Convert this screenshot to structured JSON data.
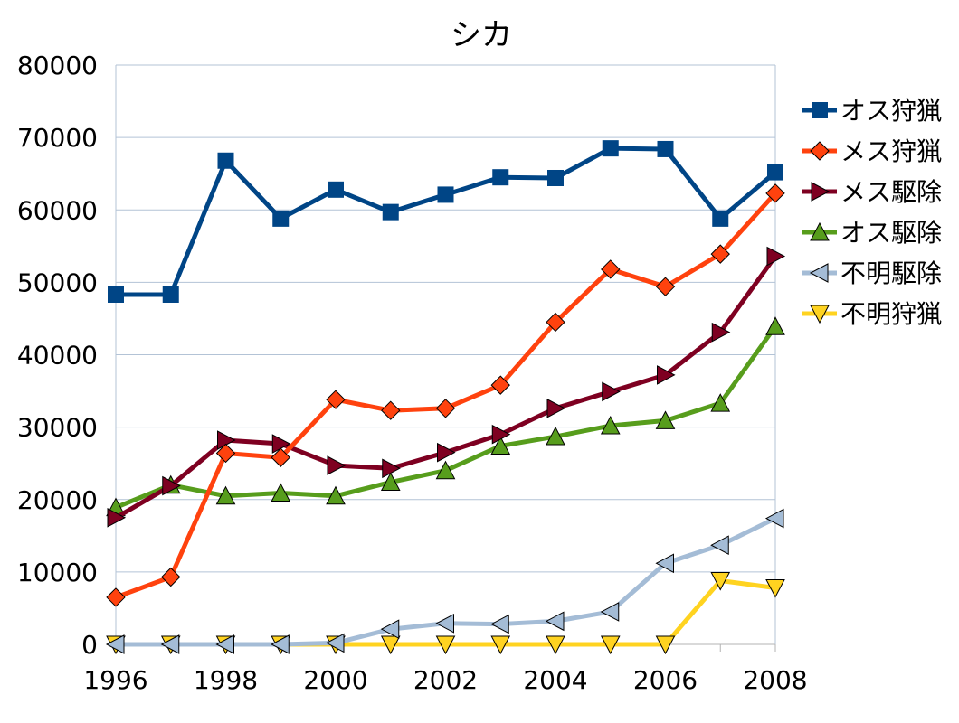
{
  "chart_data": {
    "type": "line",
    "title": "シカ",
    "xlabel": "",
    "ylabel": "",
    "x": [
      1996,
      1997,
      1998,
      1999,
      2000,
      2001,
      2002,
      2003,
      2004,
      2005,
      2006,
      2007,
      2008
    ],
    "x_tick_labels": [
      "1996",
      "1998",
      "2000",
      "2002",
      "2004",
      "2006",
      "2008"
    ],
    "x_tick_values": [
      1996,
      1998,
      2000,
      2002,
      2004,
      2006,
      2008
    ],
    "xlim": [
      1996,
      2008
    ],
    "ylim": [
      0,
      80000
    ],
    "y_tick_labels": [
      "0",
      "10000",
      "20000",
      "30000",
      "40000",
      "50000",
      "60000",
      "70000",
      "80000"
    ],
    "y_tick_values": [
      0,
      10000,
      20000,
      30000,
      40000,
      50000,
      60000,
      70000,
      80000
    ],
    "grid": true,
    "legend_position": "right",
    "series": [
      {
        "name": "オス狩猟",
        "color": "#004586",
        "marker": "square",
        "values": [
          48300,
          48300,
          66800,
          58800,
          62800,
          59700,
          62100,
          64500,
          64400,
          68500,
          68400,
          58800,
          65200
        ]
      },
      {
        "name": "メス狩猟",
        "color": "#ff420e",
        "marker": "diamond",
        "values": [
          6500,
          9300,
          26400,
          25800,
          33800,
          32300,
          32600,
          35800,
          44500,
          51800,
          49400,
          53900,
          62300
        ]
      },
      {
        "name": "メス駆除",
        "color": "#7e0021",
        "marker": "triangle-right",
        "values": [
          17500,
          21900,
          28200,
          27700,
          24700,
          24300,
          26500,
          29000,
          32600,
          34900,
          37200,
          43100,
          53600
        ]
      },
      {
        "name": "オス駆除",
        "color": "#579d1c",
        "marker": "triangle-up",
        "values": [
          18900,
          22000,
          20500,
          20900,
          20500,
          22400,
          24000,
          27400,
          28700,
          30200,
          30900,
          33300,
          43900
        ]
      },
      {
        "name": "不明駆除",
        "color": "#a4bcd6",
        "marker": "triangle-left",
        "values": [
          0,
          0,
          0,
          0,
          200,
          2100,
          2900,
          2800,
          3200,
          4500,
          11200,
          13700,
          17400
        ]
      },
      {
        "name": "不明狩猟",
        "color": "#ffd320",
        "marker": "triangle-down",
        "values": [
          0,
          0,
          0,
          0,
          0,
          0,
          0,
          0,
          0,
          0,
          0,
          8800,
          7800
        ]
      }
    ]
  }
}
